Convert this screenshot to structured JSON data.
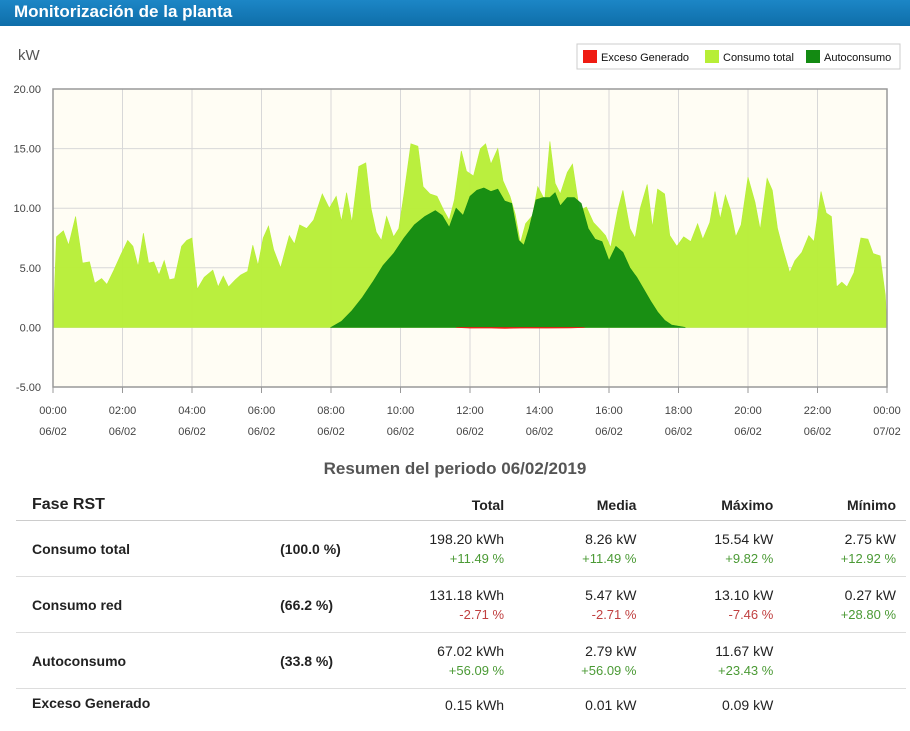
{
  "page": {
    "title": "Monitorización de la planta"
  },
  "chart_data": {
    "type": "area",
    "ylabel": "kW",
    "ylim": [
      -5,
      20
    ],
    "yticks": [
      "20.00",
      "15.00",
      "10.00",
      "5.00",
      "0.00",
      "-5.00"
    ],
    "yticks_values": [
      20,
      15,
      10,
      5,
      0,
      -5
    ],
    "xlim": [
      0,
      24
    ],
    "xticks": [
      {
        "t": 0,
        "time": "00:00",
        "date": "06/02"
      },
      {
        "t": 2,
        "time": "02:00",
        "date": "06/02"
      },
      {
        "t": 4,
        "time": "04:00",
        "date": "06/02"
      },
      {
        "t": 6,
        "time": "06:00",
        "date": "06/02"
      },
      {
        "t": 8,
        "time": "08:00",
        "date": "06/02"
      },
      {
        "t": 10,
        "time": "10:00",
        "date": "06/02"
      },
      {
        "t": 12,
        "time": "12:00",
        "date": "06/02"
      },
      {
        "t": 14,
        "time": "14:00",
        "date": "06/02"
      },
      {
        "t": 16,
        "time": "16:00",
        "date": "06/02"
      },
      {
        "t": 18,
        "time": "18:00",
        "date": "06/02"
      },
      {
        "t": 20,
        "time": "20:00",
        "date": "06/02"
      },
      {
        "t": 22,
        "time": "22:00",
        "date": "06/02"
      },
      {
        "t": 24,
        "time": "00:00",
        "date": "07/02"
      }
    ],
    "legend_position": "top-right",
    "grid": true,
    "series": [
      {
        "name": "Consumo total",
        "color": "#b7ee36",
        "points": [
          [
            0,
            0
          ],
          [
            0.1,
            7.6
          ],
          [
            0.3,
            8.1
          ],
          [
            0.45,
            6.9
          ],
          [
            0.65,
            9.3
          ],
          [
            0.85,
            5.4
          ],
          [
            1.05,
            5.5
          ],
          [
            1.2,
            3.7
          ],
          [
            1.4,
            4.1
          ],
          [
            1.55,
            3.6
          ],
          [
            1.75,
            4.8
          ],
          [
            1.95,
            6.1
          ],
          [
            2.15,
            7.3
          ],
          [
            2.3,
            6.8
          ],
          [
            2.45,
            5.1
          ],
          [
            2.6,
            7.9
          ],
          [
            2.75,
            5.4
          ],
          [
            2.9,
            5.5
          ],
          [
            3.05,
            4.4
          ],
          [
            3.2,
            5.6
          ],
          [
            3.35,
            4.0
          ],
          [
            3.5,
            4.1
          ],
          [
            3.7,
            6.8
          ],
          [
            3.85,
            7.3
          ],
          [
            4.0,
            7.5
          ],
          [
            4.15,
            3.2
          ],
          [
            4.35,
            4.2
          ],
          [
            4.6,
            4.8
          ],
          [
            4.75,
            3.4
          ],
          [
            4.9,
            4.3
          ],
          [
            5.05,
            3.4
          ],
          [
            5.25,
            4.0
          ],
          [
            5.4,
            4.4
          ],
          [
            5.6,
            4.7
          ],
          [
            5.75,
            6.9
          ],
          [
            5.9,
            5.2
          ],
          [
            6.05,
            7.5
          ],
          [
            6.2,
            8.5
          ],
          [
            6.35,
            6.5
          ],
          [
            6.55,
            5.0
          ],
          [
            6.8,
            7.7
          ],
          [
            6.95,
            7.0
          ],
          [
            7.1,
            8.6
          ],
          [
            7.3,
            8.3
          ],
          [
            7.5,
            9.0
          ],
          [
            7.75,
            11.2
          ],
          [
            7.95,
            10.0
          ],
          [
            8.15,
            11.0
          ],
          [
            8.3,
            8.9
          ],
          [
            8.45,
            11.3
          ],
          [
            8.6,
            8.8
          ],
          [
            8.8,
            13.5
          ],
          [
            9.0,
            13.8
          ],
          [
            9.15,
            10.0
          ],
          [
            9.3,
            8.0
          ],
          [
            9.45,
            7.3
          ],
          [
            9.6,
            9.3
          ],
          [
            9.8,
            7.6
          ],
          [
            9.95,
            8.3
          ],
          [
            10.1,
            11.2
          ],
          [
            10.3,
            15.4
          ],
          [
            10.5,
            15.2
          ],
          [
            10.65,
            11.8
          ],
          [
            10.85,
            11.2
          ],
          [
            11.05,
            11.0
          ],
          [
            11.25,
            9.8
          ],
          [
            11.4,
            9.0
          ],
          [
            11.55,
            10.7
          ],
          [
            11.75,
            14.8
          ],
          [
            11.9,
            13.1
          ],
          [
            12.1,
            12.7
          ],
          [
            12.3,
            15.0
          ],
          [
            12.45,
            15.4
          ],
          [
            12.6,
            13.7
          ],
          [
            12.8,
            15.0
          ],
          [
            12.95,
            12.3
          ],
          [
            13.15,
            11.0
          ],
          [
            13.3,
            9.5
          ],
          [
            13.45,
            7.1
          ],
          [
            13.6,
            8.7
          ],
          [
            13.8,
            9.4
          ],
          [
            13.95,
            11.8
          ],
          [
            14.15,
            10.7
          ],
          [
            14.3,
            15.6
          ],
          [
            14.45,
            12.1
          ],
          [
            14.6,
            11.2
          ],
          [
            14.8,
            13.0
          ],
          [
            14.95,
            13.7
          ],
          [
            15.15,
            9.8
          ],
          [
            15.35,
            10.1
          ],
          [
            15.55,
            8.8
          ],
          [
            15.75,
            8.2
          ],
          [
            15.9,
            7.7
          ],
          [
            16.05,
            6.7
          ],
          [
            16.25,
            9.8
          ],
          [
            16.4,
            11.5
          ],
          [
            16.6,
            8.3
          ],
          [
            16.75,
            7.5
          ],
          [
            16.9,
            10.0
          ],
          [
            17.1,
            12.0
          ],
          [
            17.25,
            8.4
          ],
          [
            17.4,
            11.6
          ],
          [
            17.6,
            11.2
          ],
          [
            17.75,
            7.7
          ],
          [
            17.95,
            6.8
          ],
          [
            18.15,
            7.6
          ],
          [
            18.35,
            7.2
          ],
          [
            18.55,
            8.7
          ],
          [
            18.7,
            7.4
          ],
          [
            18.9,
            8.8
          ],
          [
            19.05,
            11.4
          ],
          [
            19.2,
            9.1
          ],
          [
            19.35,
            11.1
          ],
          [
            19.5,
            9.8
          ],
          [
            19.65,
            7.6
          ],
          [
            19.8,
            8.6
          ],
          [
            20.0,
            12.6
          ],
          [
            20.2,
            10.5
          ],
          [
            20.35,
            8.2
          ],
          [
            20.55,
            12.5
          ],
          [
            20.7,
            11.5
          ],
          [
            20.85,
            8.3
          ],
          [
            21.0,
            6.6
          ],
          [
            21.2,
            4.6
          ],
          [
            21.35,
            5.6
          ],
          [
            21.55,
            6.3
          ],
          [
            21.75,
            7.7
          ],
          [
            21.9,
            7.2
          ],
          [
            22.1,
            11.4
          ],
          [
            22.25,
            9.6
          ],
          [
            22.4,
            9.3
          ],
          [
            22.55,
            3.4
          ],
          [
            22.7,
            3.8
          ],
          [
            22.85,
            3.4
          ],
          [
            23.05,
            4.6
          ],
          [
            23.25,
            7.5
          ],
          [
            23.45,
            7.4
          ],
          [
            23.6,
            6.2
          ],
          [
            23.8,
            6.0
          ],
          [
            23.95,
            2.7
          ],
          [
            24,
            0
          ]
        ]
      },
      {
        "name": "Autoconsumo",
        "color": "#138a12",
        "points": [
          [
            8.0,
            0
          ],
          [
            8.3,
            0.5
          ],
          [
            8.6,
            1.4
          ],
          [
            8.9,
            2.5
          ],
          [
            9.2,
            3.8
          ],
          [
            9.5,
            5.2
          ],
          [
            9.8,
            6.2
          ],
          [
            10.1,
            7.5
          ],
          [
            10.4,
            8.6
          ],
          [
            10.7,
            9.3
          ],
          [
            11.0,
            9.8
          ],
          [
            11.2,
            9.4
          ],
          [
            11.4,
            8.4
          ],
          [
            11.6,
            10.0
          ],
          [
            11.8,
            9.4
          ],
          [
            12.0,
            11.0
          ],
          [
            12.2,
            11.5
          ],
          [
            12.4,
            11.7
          ],
          [
            12.6,
            11.4
          ],
          [
            12.8,
            11.6
          ],
          [
            13.0,
            10.6
          ],
          [
            13.2,
            10.4
          ],
          [
            13.4,
            7.3
          ],
          [
            13.55,
            6.9
          ],
          [
            13.7,
            8.3
          ],
          [
            13.9,
            10.7
          ],
          [
            14.1,
            10.9
          ],
          [
            14.3,
            10.9
          ],
          [
            14.45,
            11.3
          ],
          [
            14.6,
            10.2
          ],
          [
            14.8,
            10.9
          ],
          [
            15.0,
            10.9
          ],
          [
            15.2,
            10.4
          ],
          [
            15.4,
            8.3
          ],
          [
            15.6,
            7.4
          ],
          [
            15.8,
            7.2
          ],
          [
            16.0,
            5.6
          ],
          [
            16.2,
            6.8
          ],
          [
            16.4,
            6.3
          ],
          [
            16.6,
            5.0
          ],
          [
            16.8,
            4.2
          ],
          [
            17.0,
            3.2
          ],
          [
            17.2,
            2.2
          ],
          [
            17.4,
            1.3
          ],
          [
            17.6,
            0.6
          ],
          [
            17.8,
            0.2
          ],
          [
            18.2,
            0
          ]
        ]
      },
      {
        "name": "Exceso Generado",
        "color": "#ef1b12",
        "points": [
          [
            11.6,
            0
          ],
          [
            12.0,
            -0.06
          ],
          [
            12.5,
            -0.04
          ],
          [
            13.0,
            -0.08
          ],
          [
            13.6,
            -0.05
          ],
          [
            14.2,
            -0.06
          ],
          [
            14.9,
            -0.05
          ],
          [
            15.3,
            0
          ]
        ]
      }
    ],
    "legend_order": [
      "Exceso Generado",
      "Consumo total",
      "Autoconsumo"
    ]
  },
  "summary": {
    "title": "Resumen del periodo 06/02/2019",
    "columns": {
      "phase": "Fase RST",
      "total": "Total",
      "media": "Media",
      "maximo": "Máximo",
      "minimo": "Mínimo"
    },
    "rows": [
      {
        "name": "Consumo total",
        "pct": "(100.0 %)",
        "total": "198.20 kWh",
        "total_delta": "+11.49 %",
        "media": "8.26 kW",
        "media_delta": "+11.49 %",
        "max": "15.54 kW",
        "max_delta": "+9.82 %",
        "min": "2.75 kW",
        "min_delta": "+12.92 %"
      },
      {
        "name": "Consumo red",
        "pct": "(66.2 %)",
        "total": "131.18 kWh",
        "total_delta": "-2.71 %",
        "media": "5.47 kW",
        "media_delta": "-2.71 %",
        "max": "13.10 kW",
        "max_delta": "-7.46 %",
        "min": "0.27 kW",
        "min_delta": "+28.80 %"
      },
      {
        "name": "Autoconsumo",
        "pct": "(33.8 %)",
        "total": "67.02 kWh",
        "total_delta": "+56.09 %",
        "media": "2.79 kW",
        "media_delta": "+56.09 %",
        "max": "11.67 kW",
        "max_delta": "+23.43 %",
        "min": "",
        "min_delta": ""
      },
      {
        "name": "Exceso Generado",
        "pct": "",
        "total": "0.15 kWh",
        "media": "0.01 kW",
        "max": "0.09 kW",
        "min": ""
      }
    ]
  }
}
